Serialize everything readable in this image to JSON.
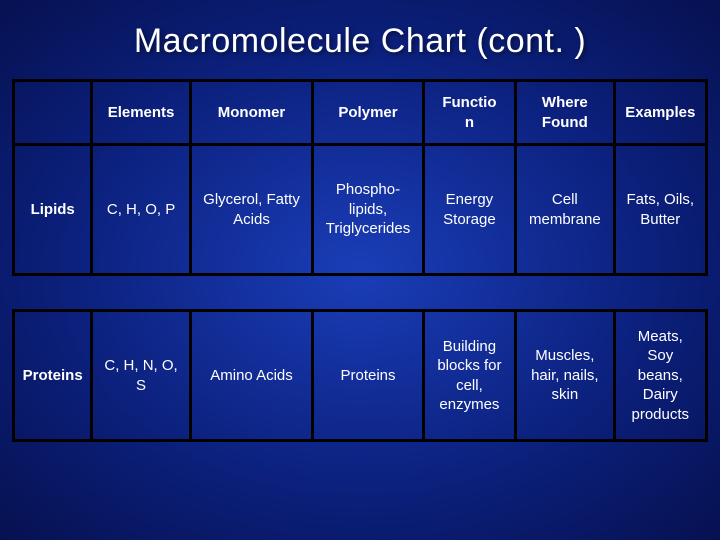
{
  "title": "Macromolecule Chart (cont. )",
  "columns": {
    "elements": "Elements",
    "monomer": "Monomer",
    "polymer": "Polymer",
    "function": "Functio\nn",
    "where": "Where\nFound",
    "examples": "Examples"
  },
  "rows": {
    "lipids": {
      "label": "Lipids",
      "elements": "C, H, O, P",
      "monomer": "Glycerol, Fatty\nAcids",
      "polymer": "Phospho-\nlipids,\nTriglycerides",
      "function": "Energy\nStorage",
      "where": "Cell\nmembrane",
      "examples": "Fats, Oils,\nButter"
    },
    "proteins": {
      "label": "Proteins",
      "elements": "C, H, N, O, S",
      "monomer": "Amino Acids",
      "polymer": "Proteins",
      "function": "Building\nblocks for\ncell,\nenzymes",
      "where": "Muscles,\nhair, nails,\nskin",
      "examples": "Meats,\nSoy\nbeans,\nDairy\nproducts"
    }
  },
  "colors": {
    "text": "#ffffff",
    "border": "#000000",
    "bg_center": "#1a3db8",
    "bg_outer": "#061150"
  }
}
